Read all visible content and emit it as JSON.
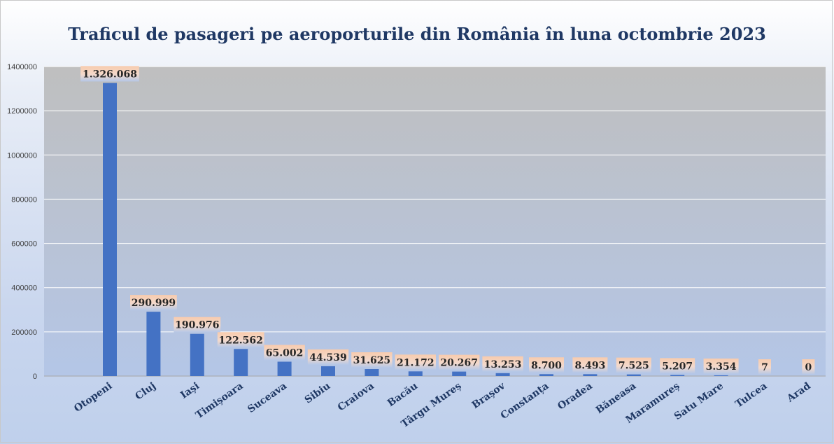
{
  "chart_data": {
    "type": "bar",
    "title": "Traficul de pasageri pe aeroporturile din România în luna octombrie 2023",
    "xlabel": "",
    "ylabel": "",
    "ylim": [
      0,
      1400000
    ],
    "yticks": [
      0,
      200000,
      400000,
      600000,
      800000,
      1000000,
      1200000,
      1400000
    ],
    "ytick_labels": [
      "0",
      "200000",
      "400000",
      "600000",
      "800000",
      "1000000",
      "1200000",
      "1400000"
    ],
    "grid": true,
    "legend": "none",
    "categories": [
      "Otopeni",
      "Cluj",
      "Iași",
      "Timișoara",
      "Suceava",
      "Sibiu",
      "Craiova",
      "Bacău",
      "Târgu Mureș",
      "Brașov",
      "Constanța",
      "Oradea",
      "Băneasa",
      "Maramureș",
      "Satu Mare",
      "Tulcea",
      "Arad"
    ],
    "values": [
      1326068,
      290999,
      190976,
      122562,
      65002,
      44539,
      31625,
      21172,
      20267,
      13253,
      8700,
      8493,
      7525,
      5207,
      3354,
      7,
      0
    ],
    "data_labels": [
      "1.326.068",
      "290.999",
      "190.976",
      "122.562",
      "65.002",
      "44.539",
      "31.625",
      "21.172",
      "20.267",
      "13.253",
      "8.700",
      "8.493",
      "7.525",
      "5.207",
      "3.354",
      "7",
      "0"
    ],
    "colors": {
      "bar": "#4472c4",
      "plot_top": "#bfbfbf",
      "plot_bottom": "#b4c6e7",
      "gridline": "#ffffff",
      "label_box_top": "#f8cbad",
      "label_box_bottom": "#b4c7e7",
      "title": "#1f3864"
    }
  }
}
